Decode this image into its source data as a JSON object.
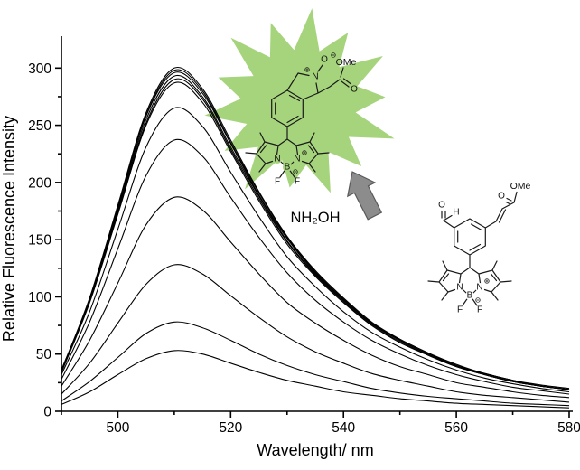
{
  "figure": {
    "background": "#ffffff",
    "curve_color": "#000000",
    "axis_color": "#000000"
  },
  "chart_data": {
    "type": "line",
    "title": "",
    "xlabel": "Wavelength/ nm",
    "ylabel": "Relative Fluorescence Intensity",
    "xlim": [
      490,
      580
    ],
    "ylim": [
      0,
      320
    ],
    "x_major_ticks": [
      500,
      520,
      540,
      560,
      580
    ],
    "x_minor_ticks": [
      490,
      510,
      530,
      550,
      570
    ],
    "y_major_ticks": [
      0,
      50,
      100,
      150,
      200,
      250,
      300
    ],
    "y_minor_ticks": [
      25,
      75,
      125,
      175,
      225,
      275
    ],
    "grid": false,
    "legend": "none",
    "x": [
      490,
      495,
      500,
      505,
      510,
      515,
      520,
      525,
      530,
      535,
      540,
      545,
      550,
      555,
      560,
      565,
      570,
      575,
      580
    ],
    "series": [
      {
        "name": "spectrum-01",
        "peak": 300,
        "values": [
          36,
          99,
          180,
          261,
          300,
          282,
          237,
          192,
          153,
          123,
          99,
          78,
          63,
          51,
          41,
          33,
          27,
          23,
          20
        ]
      },
      {
        "name": "spectrum-02",
        "peak": 298,
        "values": [
          36,
          98,
          179,
          259,
          298,
          280,
          235,
          191,
          152,
          122,
          98,
          77,
          63,
          51,
          40,
          33,
          27,
          22,
          19
        ]
      },
      {
        "name": "spectrum-03",
        "peak": 296,
        "values": [
          36,
          98,
          178,
          258,
          296,
          278,
          234,
          189,
          151,
          121,
          98,
          77,
          62,
          50,
          40,
          33,
          27,
          22,
          19
        ]
      },
      {
        "name": "spectrum-04",
        "peak": 293,
        "values": [
          35,
          97,
          176,
          255,
          293,
          275,
          231,
          188,
          149,
          120,
          97,
          76,
          62,
          50,
          40,
          32,
          26,
          22,
          19
        ]
      },
      {
        "name": "spectrum-05",
        "peak": 290,
        "values": [
          35,
          96,
          174,
          252,
          290,
          273,
          229,
          186,
          148,
          119,
          96,
          75,
          61,
          49,
          39,
          32,
          26,
          22,
          19
        ]
      },
      {
        "name": "spectrum-06",
        "peak": 287,
        "values": [
          34,
          95,
          172,
          250,
          287,
          270,
          227,
          184,
          146,
          118,
          95,
          75,
          60,
          49,
          39,
          32,
          26,
          22,
          19
        ]
      },
      {
        "name": "spectrum-07",
        "peak": 265,
        "values": [
          32,
          87,
          159,
          231,
          265,
          249,
          209,
          170,
          135,
          109,
          87,
          69,
          56,
          45,
          36,
          29,
          24,
          20,
          17
        ]
      },
      {
        "name": "spectrum-08",
        "peak": 237,
        "values": [
          28,
          78,
          142,
          206,
          237,
          223,
          187,
          152,
          121,
          97,
          78,
          62,
          50,
          40,
          32,
          26,
          21,
          18,
          15
        ]
      },
      {
        "name": "spectrum-09",
        "peak": 187,
        "values": [
          22,
          62,
          112,
          163,
          187,
          176,
          148,
          120,
          95,
          77,
          62,
          49,
          39,
          32,
          25,
          21,
          17,
          14,
          12
        ]
      },
      {
        "name": "spectrum-10",
        "peak": 128,
        "values": [
          15,
          42,
          77,
          111,
          128,
          120,
          101,
          82,
          65,
          52,
          42,
          33,
          27,
          22,
          17,
          14,
          12,
          10,
          8
        ]
      },
      {
        "name": "spectrum-11",
        "peak": 78,
        "values": [
          9,
          26,
          47,
          68,
          78,
          73,
          62,
          50,
          40,
          32,
          26,
          20,
          16,
          13,
          11,
          9,
          7,
          6,
          5
        ]
      },
      {
        "name": "spectrum-12",
        "peak": 53,
        "values": [
          6,
          17,
          32,
          46,
          53,
          50,
          42,
          34,
          27,
          22,
          17,
          14,
          11,
          9,
          7,
          6,
          5,
          4,
          3
        ]
      }
    ]
  },
  "annotations": {
    "nh2oh_label": "NH₂OH",
    "star_color": "#a6d47c",
    "arrow_fill": "#8c8c8c",
    "arrow_stroke": "#595959"
  },
  "structures": {
    "product": {
      "ome": "OMe",
      "carbonyl_o": "O",
      "n_label": "N",
      "n_charge": "⊕",
      "oxide_o": "O",
      "oxide_charge": "⊖"
    },
    "reactant": {
      "ome": "OMe",
      "carbonyl_o": "O",
      "aldehyde_o": "O",
      "aldehyde_h": "H"
    },
    "bodipy_core": {
      "n_left": "N",
      "n_right": "N",
      "boron": "B",
      "f_left": "F",
      "f_right": "F",
      "n_charge": "⊕",
      "b_charge": "⊖"
    }
  }
}
